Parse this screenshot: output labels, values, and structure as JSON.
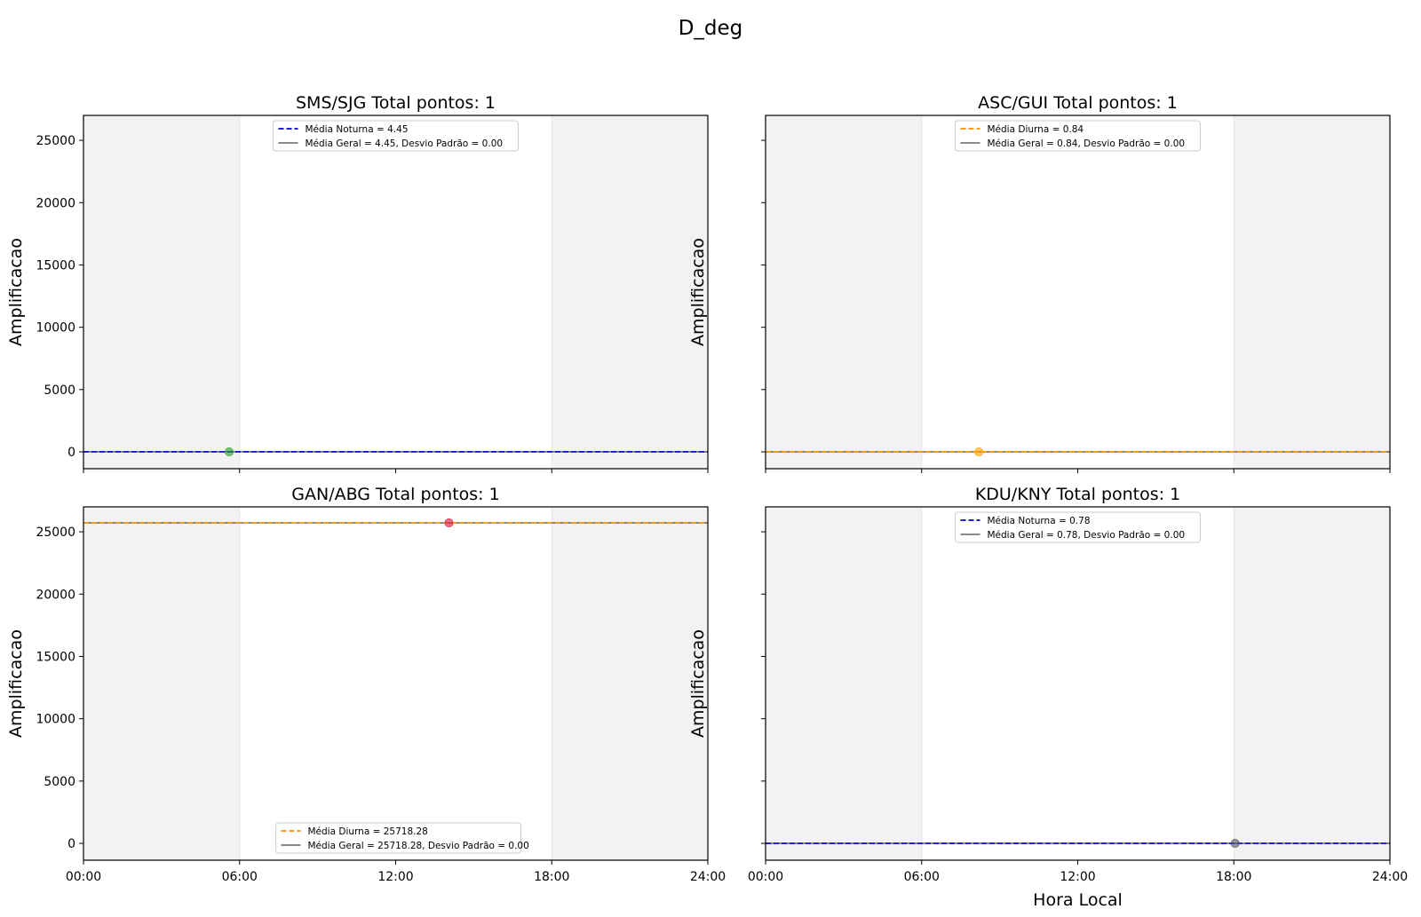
{
  "figure": {
    "title": "D_deg"
  },
  "chart_data": [
    {
      "type": "scatter",
      "title": "SMS/SJG  Total pontos: 1",
      "xlabel": "",
      "ylabel": "Amplificacao",
      "xlim": [
        0,
        24
      ],
      "ylim": [
        -1350,
        27000
      ],
      "x_ticks": [
        "00:00",
        "06:00",
        "12:00",
        "18:00",
        "24:00"
      ],
      "x_ticklabels_shown": false,
      "y_ticks": [
        0,
        5000,
        10000,
        15000,
        20000,
        25000
      ],
      "y_ticklabels_shown": true,
      "night_shading": [
        [
          0,
          6
        ],
        [
          18,
          24
        ]
      ],
      "points": [
        {
          "x": 5.6,
          "y": 4.45,
          "color": "#2ca02c"
        }
      ],
      "lines": [
        {
          "name": "Média Noturna = 4.45",
          "value": 4.45,
          "style": "dashed",
          "color": "#0000cc"
        },
        {
          "name": "Média Geral = 4.45, Desvio Padrão = 0.00",
          "value": 4.45,
          "style": "solid",
          "color": "#444444"
        }
      ],
      "legend": "upper center"
    },
    {
      "type": "scatter",
      "title": "ASC/GUI  Total pontos: 1",
      "xlabel": "",
      "ylabel": "Amplificacao",
      "xlim": [
        0,
        24
      ],
      "ylim": [
        -1350,
        27000
      ],
      "x_ticks": [
        "00:00",
        "06:00",
        "12:00",
        "18:00",
        "24:00"
      ],
      "x_ticklabels_shown": false,
      "y_ticks": [
        0,
        5000,
        10000,
        15000,
        20000,
        25000
      ],
      "y_ticklabels_shown": false,
      "night_shading": [
        [
          0,
          6
        ],
        [
          18,
          24
        ]
      ],
      "points": [
        {
          "x": 8.2,
          "y": 0.84,
          "color": "#ffa500"
        }
      ],
      "lines": [
        {
          "name": "Média Diurna = 0.84",
          "value": 0.84,
          "style": "dashed",
          "color": "#ff8c00"
        },
        {
          "name": "Média Geral = 0.84, Desvio Padrão = 0.00",
          "value": 0.84,
          "style": "solid",
          "color": "#444444"
        }
      ],
      "legend": "upper center"
    },
    {
      "type": "scatter",
      "title": "GAN/ABG  Total pontos: 1",
      "xlabel": "",
      "ylabel": "Amplificacao",
      "xlim": [
        0,
        24
      ],
      "ylim": [
        -1350,
        27000
      ],
      "x_ticks": [
        "00:00",
        "06:00",
        "12:00",
        "18:00",
        "24:00"
      ],
      "x_ticklabels_shown": true,
      "y_ticks": [
        0,
        5000,
        10000,
        15000,
        20000,
        25000
      ],
      "y_ticklabels_shown": true,
      "night_shading": [
        [
          0,
          6
        ],
        [
          18,
          24
        ]
      ],
      "points": [
        {
          "x": 14.05,
          "y": 25718.28,
          "color": "#dc143c"
        }
      ],
      "lines": [
        {
          "name": "Média Diurna = 25718.28",
          "value": 25718.28,
          "style": "dashed",
          "color": "#ff8c00"
        },
        {
          "name": "Média Geral = 25718.28, Desvio Padrão = 0.00",
          "value": 25718.28,
          "style": "solid",
          "color": "#444444"
        }
      ],
      "legend": "lower center"
    },
    {
      "type": "scatter",
      "title": "KDU/KNY  Total pontos: 1",
      "xlabel": "Hora Local",
      "ylabel": "Amplificacao",
      "xlim": [
        0,
        24
      ],
      "ylim": [
        -1350,
        27000
      ],
      "x_ticks": [
        "00:00",
        "06:00",
        "12:00",
        "18:00",
        "24:00"
      ],
      "x_ticklabels_shown": true,
      "y_ticks": [
        0,
        5000,
        10000,
        15000,
        20000,
        25000
      ],
      "y_ticklabels_shown": false,
      "night_shading": [
        [
          0,
          6
        ],
        [
          18,
          24
        ]
      ],
      "points": [
        {
          "x": 18.05,
          "y": 0.78,
          "color": "#555566"
        }
      ],
      "lines": [
        {
          "name": "Média Noturna = 0.78",
          "value": 0.78,
          "style": "dashed",
          "color": "#0000cc"
        },
        {
          "name": "Média Geral = 0.78, Desvio Padrão = 0.00",
          "value": 0.78,
          "style": "solid",
          "color": "#444444"
        }
      ],
      "legend": "upper center"
    }
  ]
}
